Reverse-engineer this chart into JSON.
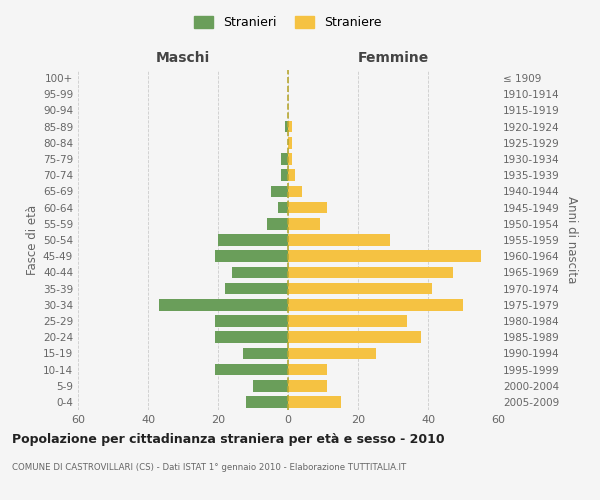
{
  "age_groups": [
    "0-4",
    "5-9",
    "10-14",
    "15-19",
    "20-24",
    "25-29",
    "30-34",
    "35-39",
    "40-44",
    "45-49",
    "50-54",
    "55-59",
    "60-64",
    "65-69",
    "70-74",
    "75-79",
    "80-84",
    "85-89",
    "90-94",
    "95-99",
    "100+"
  ],
  "birth_years": [
    "2005-2009",
    "2000-2004",
    "1995-1999",
    "1990-1994",
    "1985-1989",
    "1980-1984",
    "1975-1979",
    "1970-1974",
    "1965-1969",
    "1960-1964",
    "1955-1959",
    "1950-1954",
    "1945-1949",
    "1940-1944",
    "1935-1939",
    "1930-1934",
    "1925-1929",
    "1920-1924",
    "1915-1919",
    "1910-1914",
    "≤ 1909"
  ],
  "males": [
    12,
    10,
    21,
    13,
    21,
    21,
    37,
    18,
    16,
    21,
    20,
    6,
    3,
    5,
    2,
    2,
    0,
    1,
    0,
    0,
    0
  ],
  "females": [
    15,
    11,
    11,
    25,
    38,
    34,
    50,
    41,
    47,
    55,
    29,
    9,
    11,
    4,
    2,
    1,
    1,
    1,
    0,
    0,
    0
  ],
  "male_color": "#6a9e5a",
  "female_color": "#f5c242",
  "dashed_line_color": "#b8a832",
  "background_color": "#f5f5f5",
  "grid_color": "#cccccc",
  "title": "Popolazione per cittadinanza straniera per età e sesso - 2010",
  "subtitle": "COMUNE DI CASTROVILLARI (CS) - Dati ISTAT 1° gennaio 2010 - Elaborazione TUTTITALIA.IT",
  "ylabel_left": "Fasce di età",
  "ylabel_right": "Anni di nascita",
  "xlabel_left": "Maschi",
  "xlabel_right": "Femmine",
  "legend_male": "Stranieri",
  "legend_female": "Straniere",
  "xlim": 60
}
